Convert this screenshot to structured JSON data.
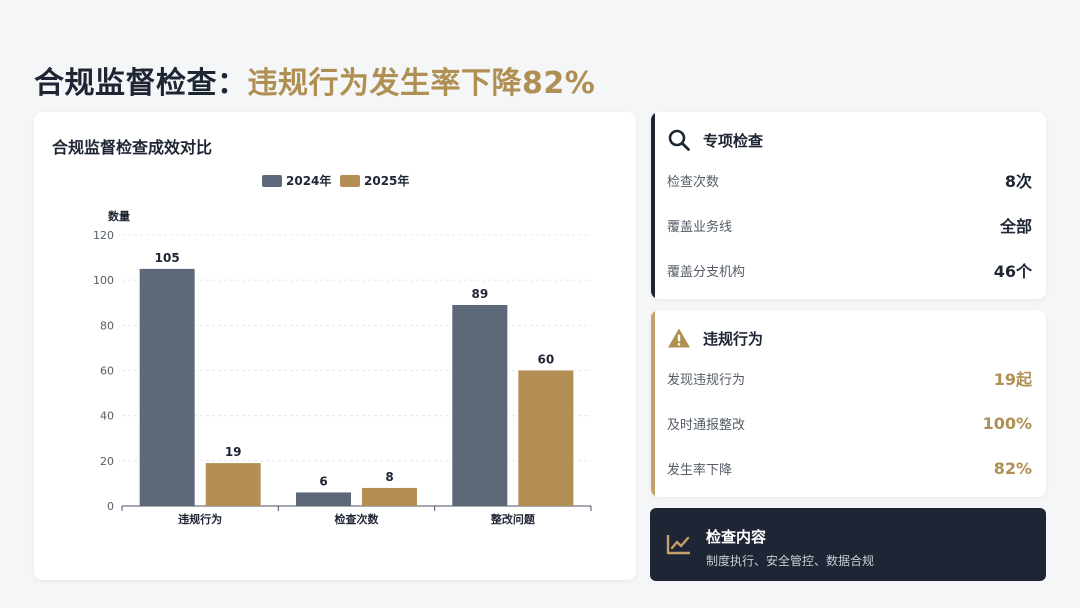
{
  "page_title": {
    "prefix": "合规监督检查：",
    "highlight": "违规行为发生率下降82%"
  },
  "colors": {
    "series_2024": "#5d6878",
    "series_2025": "#b38f55",
    "accent_gold": "#b08f52",
    "dark": "#1e2533"
  },
  "chart_card": {
    "title": "合规监督检查成效对比"
  },
  "chart_data": {
    "type": "bar",
    "title": "合规监督检查成效对比",
    "categories": [
      "违规行为",
      "检查次数",
      "整改问题"
    ],
    "series": [
      {
        "name": "2024年",
        "values": [
          105,
          6,
          89
        ]
      },
      {
        "name": "2025年",
        "values": [
          19,
          8,
          60
        ]
      }
    ],
    "xlabel": "",
    "ylabel": "数量",
    "ylim": [
      0,
      120
    ],
    "yticks": [
      0,
      20,
      40,
      60,
      80,
      100,
      120
    ],
    "legend_position": "top-center",
    "grid": true,
    "data_labels": true
  },
  "inspection_card": {
    "icon": "search-icon",
    "title": "专项检查",
    "rows": [
      {
        "label": "检查次数",
        "value": "8次"
      },
      {
        "label": "覆盖业务线",
        "value": "全部"
      },
      {
        "label": "覆盖分支机构",
        "value": "46个"
      }
    ]
  },
  "violation_card": {
    "icon": "warning-icon",
    "title": "违规行为",
    "rows": [
      {
        "label": "发现违规行为",
        "value": "19起"
      },
      {
        "label": "及时通报整改",
        "value": "100%"
      },
      {
        "label": "发生率下降",
        "value": "82%"
      }
    ]
  },
  "content_card": {
    "icon": "line-chart-icon",
    "title": "检查内容",
    "description": "制度执行、安全管控、数据合规"
  }
}
